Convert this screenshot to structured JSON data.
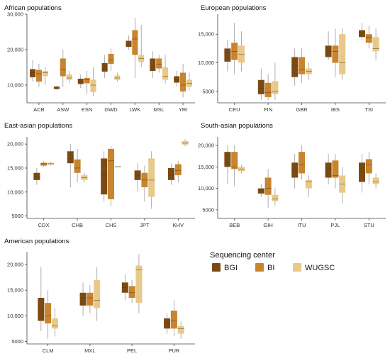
{
  "colors": {
    "BGI": "#7b4a12",
    "BI": "#c8842e",
    "WUGSC": "#e8c98a",
    "whisker": "#9a9a9a",
    "axis": "#444444"
  },
  "chart_data": [
    {
      "type": "box",
      "title": "African populations",
      "categories": [
        "ACB",
        "ASW",
        "ESN",
        "GWD",
        "LWK",
        "MSL",
        "YRI"
      ],
      "ylim": [
        5000,
        30000
      ],
      "yticks": [
        10000,
        20000,
        30000
      ],
      "ytick_labels": [
        "10,000",
        "20,000",
        "30,000"
      ],
      "series": [
        {
          "name": "BGI",
          "boxes": [
            {
              "min": 11000,
              "q1": 12200,
              "median": 13500,
              "q3": 14500,
              "max": 17000
            },
            {
              "min": 8700,
              "q1": 8900,
              "median": 9100,
              "q3": 9600,
              "max": 9800
            },
            {
              "min": 9200,
              "q1": 10300,
              "median": 11000,
              "q3": 11800,
              "max": 13000
            },
            {
              "min": 12000,
              "q1": 13800,
              "median": 14500,
              "q3": 16200,
              "max": 18500
            },
            {
              "min": 20000,
              "q1": 20800,
              "median": 21200,
              "q3": 22500,
              "max": 24000
            },
            {
              "min": 12000,
              "q1": 14000,
              "median": 15200,
              "q3": 17500,
              "max": 19500
            },
            {
              "min": 9500,
              "q1": 10700,
              "median": 11500,
              "q3": 12500,
              "max": 14000
            }
          ]
        },
        {
          "name": "BI",
          "boxes": [
            {
              "min": 9500,
              "q1": 11000,
              "median": 13200,
              "q3": 14300,
              "max": 16000
            },
            {
              "min": 9500,
              "q1": 12500,
              "median": 14500,
              "q3": 17500,
              "max": 20000
            },
            {
              "min": 7500,
              "q1": 10500,
              "median": 11500,
              "q3": 12000,
              "max": 14000
            },
            {
              "min": 14000,
              "q1": 16000,
              "median": 17000,
              "q3": 18800,
              "max": 20500
            },
            {
              "min": 12000,
              "q1": 18500,
              "median": 23000,
              "q3": 25500,
              "max": 29000
            },
            {
              "min": 13500,
              "q1": 14700,
              "median": 15900,
              "q3": 17500,
              "max": 18500
            },
            {
              "min": 6500,
              "q1": 8200,
              "median": 10000,
              "q3": 13500,
              "max": 16000
            }
          ]
        },
        {
          "name": "WUGSC",
          "boxes": [
            {
              "min": 10000,
              "q1": 12500,
              "median": 13500,
              "q3": 14000,
              "max": 15000
            },
            {
              "min": 10500,
              "q1": 11500,
              "median": 12000,
              "q3": 13000,
              "max": 14000
            },
            {
              "min": 7000,
              "q1": 8000,
              "median": 10000,
              "q3": 11500,
              "max": 15000
            },
            {
              "min": 11000,
              "q1": 11500,
              "median": 12000,
              "q3": 12700,
              "max": 13500
            },
            {
              "min": 15000,
              "q1": 16500,
              "median": 17500,
              "q3": 18500,
              "max": 27000
            },
            {
              "min": 10500,
              "q1": 11500,
              "median": 12500,
              "q3": 15000,
              "max": 18500
            },
            {
              "min": 8500,
              "q1": 9500,
              "median": 10500,
              "q3": 11500,
              "max": 13500
            }
          ]
        }
      ]
    },
    {
      "type": "box",
      "title": "European populations",
      "categories": [
        "CEU",
        "FIN",
        "GBR",
        "IBS",
        "TSI"
      ],
      "ylim": [
        3000,
        18500
      ],
      "yticks": [
        5000,
        10000,
        15000
      ],
      "ytick_labels": [
        "5000",
        "10,000",
        "15,000"
      ],
      "series": [
        {
          "name": "BGI",
          "boxes": [
            {
              "min": 8500,
              "q1": 10200,
              "median": 11800,
              "q3": 12500,
              "max": 14000
            },
            {
              "min": 3500,
              "q1": 4500,
              "median": 5500,
              "q3": 7000,
              "max": 9000
            },
            {
              "min": 6000,
              "q1": 7500,
              "median": 9500,
              "q3": 11000,
              "max": 12500
            },
            {
              "min": 10500,
              "q1": 11000,
              "median": 12000,
              "q3": 13000,
              "max": 15500
            },
            {
              "min": 14000,
              "q1": 14500,
              "median": 15200,
              "q3": 15700,
              "max": 17000
            }
          ]
        },
        {
          "name": "BI",
          "boxes": [
            {
              "min": 8000,
              "q1": 10500,
              "median": 12000,
              "q3": 13500,
              "max": 17000
            },
            {
              "min": 3500,
              "q1": 4000,
              "median": 4800,
              "q3": 6500,
              "max": 8000
            },
            {
              "min": 6500,
              "q1": 8000,
              "median": 8800,
              "q3": 11000,
              "max": 12500
            },
            {
              "min": 7500,
              "q1": 10000,
              "median": 12000,
              "q3": 13000,
              "max": 16000
            },
            {
              "min": 12500,
              "q1": 13500,
              "median": 14500,
              "q3": 15000,
              "max": 16500
            }
          ]
        },
        {
          "name": "WUGSC",
          "boxes": [
            {
              "min": 8500,
              "q1": 10000,
              "median": 11500,
              "q3": 13000,
              "max": 15500
            },
            {
              "min": 3500,
              "q1": 4500,
              "median": 5000,
              "q3": 6800,
              "max": 10000
            },
            {
              "min": 7000,
              "q1": 8000,
              "median": 8500,
              "q3": 9000,
              "max": 10000
            },
            {
              "min": 7000,
              "q1": 8000,
              "median": 10000,
              "q3": 15000,
              "max": 16000
            },
            {
              "min": 10500,
              "q1": 12000,
              "median": 12500,
              "q3": 14500,
              "max": 16000
            }
          ]
        }
      ]
    },
    {
      "type": "box",
      "title": "East-asian populations",
      "categories": [
        "CDX",
        "CHB",
        "CHS",
        "JPT",
        "KHV"
      ],
      "ylim": [
        4500,
        21500
      ],
      "yticks": [
        5000,
        10000,
        15000,
        20000
      ],
      "ytick_labels": [
        "5000",
        "10,000",
        "15,000",
        "20,000"
      ],
      "series": [
        {
          "name": "BGI",
          "boxes": [
            {
              "min": 11500,
              "q1": 12500,
              "median": 13200,
              "q3": 14000,
              "max": 15000
            },
            {
              "min": 11000,
              "q1": 16000,
              "median": 17000,
              "q3": 18500,
              "max": 20000
            },
            {
              "min": 8000,
              "q1": 9500,
              "median": 13500,
              "q3": 17000,
              "max": 18500
            },
            {
              "min": 10000,
              "q1": 12500,
              "median": 13500,
              "q3": 14500,
              "max": 16000
            },
            {
              "min": 11500,
              "q1": 12500,
              "median": 13500,
              "q3": 15000,
              "max": 16000
            }
          ]
        },
        {
          "name": "BI",
          "boxes": [
            {
              "min": 15200,
              "q1": 15500,
              "median": 15900,
              "q3": 16100,
              "max": 16500
            },
            {
              "min": 12000,
              "q1": 14000,
              "median": 15000,
              "q3": 16800,
              "max": 19000
            },
            {
              "min": 7000,
              "q1": 8500,
              "median": 16500,
              "q3": 19000,
              "max": 19500
            },
            {
              "min": 8000,
              "q1": 11000,
              "median": 12500,
              "q3": 14000,
              "max": 15500
            },
            {
              "min": 12000,
              "q1": 13500,
              "median": 14500,
              "q3": 15800,
              "max": 16500
            }
          ]
        },
        {
          "name": "WUGSC",
          "boxes": [
            {
              "min": 15500,
              "q1": 15700,
              "median": 15900,
              "q3": 16100,
              "max": 16300
            },
            {
              "min": 12000,
              "q1": 12500,
              "median": 13000,
              "q3": 13500,
              "max": 14000
            },
            {
              "min": 15300,
              "q1": 15300,
              "median": 15300,
              "q3": 15300,
              "max": 15300
            },
            {
              "min": 6500,
              "q1": 9000,
              "median": 12500,
              "q3": 17000,
              "max": 18500
            },
            {
              "min": 19500,
              "q1": 19900,
              "median": 20200,
              "q3": 20600,
              "max": 21000
            }
          ]
        }
      ]
    },
    {
      "type": "box",
      "title": "South-asian populations",
      "categories": [
        "BEB",
        "GIH",
        "ITU",
        "PJL",
        "STU"
      ],
      "ylim": [
        3000,
        22000
      ],
      "yticks": [
        5000,
        10000,
        15000,
        20000
      ],
      "ytick_labels": [
        "5000",
        "10,000",
        "15,000",
        "20,000"
      ],
      "series": [
        {
          "name": "BGI",
          "boxes": [
            {
              "min": 11000,
              "q1": 15000,
              "median": 16000,
              "q3": 18500,
              "max": 20000
            },
            {
              "min": 8000,
              "q1": 8800,
              "median": 9500,
              "q3": 10000,
              "max": 11000
            },
            {
              "min": 10000,
              "q1": 12500,
              "median": 14500,
              "q3": 16000,
              "max": 18000
            },
            {
              "min": 11000,
              "q1": 12500,
              "median": 14500,
              "q3": 16000,
              "max": 18000
            },
            {
              "min": 9000,
              "q1": 11500,
              "median": 14000,
              "q3": 16000,
              "max": 18000
            }
          ]
        },
        {
          "name": "BI",
          "boxes": [
            {
              "min": 10500,
              "q1": 14500,
              "median": 15000,
              "q3": 18500,
              "max": 20000
            },
            {
              "min": 5500,
              "q1": 8500,
              "median": 10000,
              "q3": 12500,
              "max": 14500
            },
            {
              "min": 12000,
              "q1": 13500,
              "median": 15500,
              "q3": 18500,
              "max": 20000
            },
            {
              "min": 10000,
              "q1": 12500,
              "median": 13000,
              "q3": 16500,
              "max": 18000
            },
            {
              "min": 11000,
              "q1": 13500,
              "median": 15500,
              "q3": 16800,
              "max": 18500
            }
          ]
        },
        {
          "name": "WUGSC",
          "boxes": [
            {
              "min": 13500,
              "q1": 14000,
              "median": 14500,
              "q3": 15000,
              "max": 15500
            },
            {
              "min": 6000,
              "q1": 7000,
              "median": 7500,
              "q3": 8500,
              "max": 10000
            },
            {
              "min": 8000,
              "q1": 10000,
              "median": 11500,
              "q3": 12000,
              "max": 13000
            },
            {
              "min": 6500,
              "q1": 9000,
              "median": 11000,
              "q3": 13000,
              "max": 15000
            },
            {
              "min": 10000,
              "q1": 11000,
              "median": 11500,
              "q3": 12500,
              "max": 13500
            }
          ]
        }
      ]
    },
    {
      "type": "box",
      "title": "American populations",
      "categories": [
        "CLM",
        "MXL",
        "PEL",
        "PUR"
      ],
      "ylim": [
        4500,
        22500
      ],
      "yticks": [
        5000,
        10000,
        15000,
        20000
      ],
      "ytick_labels": [
        "5000",
        "10,000",
        "15,000",
        "20,000"
      ],
      "series": [
        {
          "name": "BGI",
          "boxes": [
            {
              "min": 7000,
              "q1": 9000,
              "median": 11000,
              "q3": 13500,
              "max": 19500
            },
            {
              "min": 10000,
              "q1": 12000,
              "median": 13500,
              "q3": 14500,
              "max": 16500
            },
            {
              "min": 13000,
              "q1": 14500,
              "median": 15500,
              "q3": 16500,
              "max": 18000
            },
            {
              "min": 6500,
              "q1": 7500,
              "median": 8500,
              "q3": 9500,
              "max": 10500
            }
          ]
        },
        {
          "name": "BI",
          "boxes": [
            {
              "min": 5500,
              "q1": 8500,
              "median": 10000,
              "q3": 12500,
              "max": 15000
            },
            {
              "min": 10500,
              "q1": 12000,
              "median": 13500,
              "q3": 14500,
              "max": 16000
            },
            {
              "min": 12500,
              "q1": 13500,
              "median": 14500,
              "q3": 15800,
              "max": 17000
            },
            {
              "min": 6000,
              "q1": 7500,
              "median": 9000,
              "q3": 11000,
              "max": 13000
            }
          ]
        },
        {
          "name": "WUGSC",
          "boxes": [
            {
              "min": 6000,
              "q1": 7500,
              "median": 8000,
              "q3": 9500,
              "max": 11500
            },
            {
              "min": 9000,
              "q1": 11500,
              "median": 13000,
              "q3": 17000,
              "max": 19500
            },
            {
              "min": 10500,
              "q1": 12500,
              "median": 19000,
              "q3": 19800,
              "max": 22000
            },
            {
              "min": 5500,
              "q1": 6500,
              "median": 7500,
              "q3": 8000,
              "max": 9000
            }
          ]
        }
      ]
    }
  ],
  "legend": {
    "title": "Sequencing center",
    "items": [
      {
        "name": "BGI",
        "label": "BGI"
      },
      {
        "name": "BI",
        "label": "BI"
      },
      {
        "name": "WUGSC",
        "label": "WUGSC"
      }
    ]
  }
}
